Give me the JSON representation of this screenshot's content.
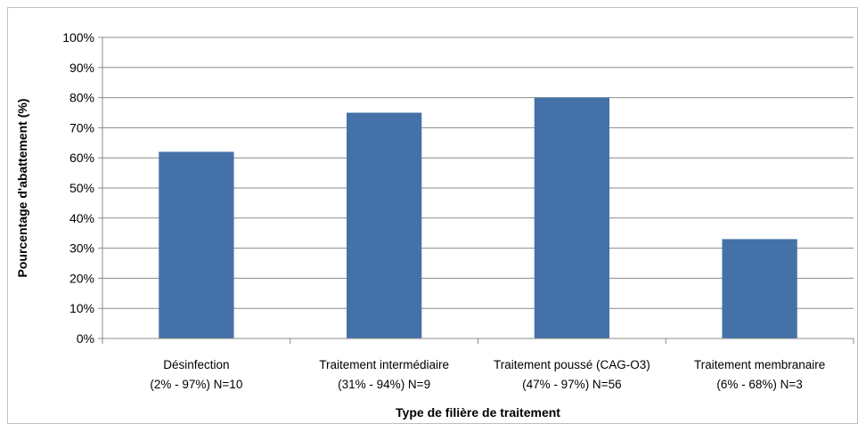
{
  "chart_data": {
    "type": "bar",
    "title": "",
    "xlabel": "Type de filière de traitement",
    "ylabel": "Pourcentage d'abattement (%)",
    "ylim": [
      0,
      100
    ],
    "y_tick_values": [
      0,
      10,
      20,
      30,
      40,
      50,
      60,
      70,
      80,
      90,
      100
    ],
    "y_tick_labels": [
      "0%",
      "10%",
      "20%",
      "30%",
      "40%",
      "50%",
      "60%",
      "70%",
      "80%",
      "90%",
      "100%"
    ],
    "grid": true,
    "legend": "none",
    "bar_color": "#4472a8",
    "categories": [
      [
        "Désinfection",
        "(2% - 97%) N=10"
      ],
      [
        "Traitement intermédiaire",
        "(31% - 94%) N=9"
      ],
      [
        "Traitement poussé (CAG-O3)",
        "(47% - 97%) N=56"
      ],
      [
        "Traitement membranaire",
        "(6% - 68%) N=3"
      ]
    ],
    "values": [
      62,
      75,
      80,
      33
    ]
  }
}
